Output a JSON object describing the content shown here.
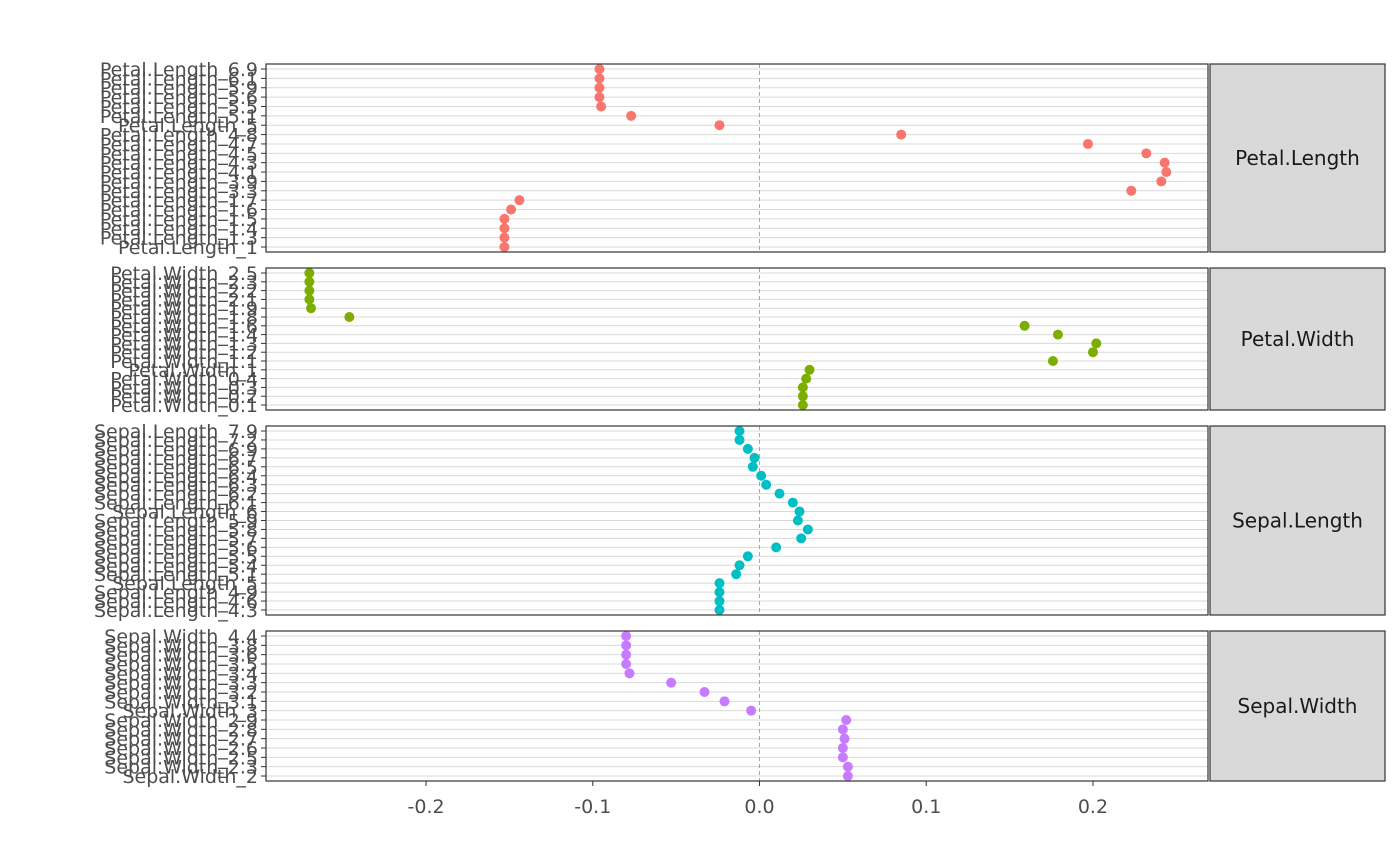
{
  "chart_data": {
    "type": "scatter",
    "title": "",
    "xlabel": "",
    "ylabel": "",
    "xlim": [
      -0.296,
      0.269
    ],
    "x_ticks": [
      -0.2,
      -0.1,
      0.0,
      0.1,
      0.2
    ],
    "x_tick_labels": [
      "-0.2",
      "-0.1",
      "0.0",
      "0.1",
      "0.2"
    ],
    "reference_line_x": 0,
    "grid": true,
    "legend": "none",
    "colors": {
      "Petal.Length": "#F8766D",
      "Petal.Width": "#7CAE00",
      "Sepal.Length": "#00BFC4",
      "Sepal.Width": "#C77CFF",
      "strip_fill": "#d9d9d9",
      "grid": "#d9d9d9",
      "reference_line": "#a6a6a6"
    },
    "panels": [
      {
        "strip": "Petal.Length",
        "categories": [
          "Petal.Length_6.9",
          "Petal.Length_6.1",
          "Petal.Length_5.9",
          "Petal.Length_5.6",
          "Petal.Length_5.5",
          "Petal.Length_5.1",
          "Petal.Length_5",
          "Petal.Length_4.8",
          "Petal.Length_4.7",
          "Petal.Length_4.5",
          "Petal.Length_4.3",
          "Petal.Length_4.1",
          "Petal.Length_3.9",
          "Petal.Length_3.3",
          "Petal.Length_1.7",
          "Petal.Length_1.6",
          "Petal.Length_1.5",
          "Petal.Length_1.4",
          "Petal.Length_1.3",
          "Petal.Length_1"
        ],
        "values": [
          -0.096,
          -0.096,
          -0.096,
          -0.096,
          -0.095,
          -0.077,
          -0.024,
          0.085,
          0.197,
          0.232,
          0.243,
          0.244,
          0.241,
          0.223,
          -0.144,
          -0.149,
          -0.153,
          -0.153,
          -0.153,
          -0.153
        ]
      },
      {
        "strip": "Petal.Width",
        "categories": [
          "Petal.Width_2.5",
          "Petal.Width_2.3",
          "Petal.Width_2.2",
          "Petal.Width_2.1",
          "Petal.Width_1.9",
          "Petal.Width_1.8",
          "Petal.Width_1.6",
          "Petal.Width_1.4",
          "Petal.Width_1.3",
          "Petal.Width_1.2",
          "Petal.Width_1.1",
          "Petal.Width_1",
          "Petal.Width_0.4",
          "Petal.Width_0.3",
          "Petal.Width_0.2",
          "Petal.Width_0.1"
        ],
        "values": [
          -0.27,
          -0.27,
          -0.27,
          -0.27,
          -0.269,
          -0.246,
          0.159,
          0.179,
          0.202,
          0.2,
          0.176,
          0.03,
          0.028,
          0.026,
          0.026,
          0.026
        ]
      },
      {
        "strip": "Sepal.Length",
        "categories": [
          "Sepal.Length_7.9",
          "Sepal.Length_7.2",
          "Sepal.Length_6.9",
          "Sepal.Length_6.7",
          "Sepal.Length_6.5",
          "Sepal.Length_6.4",
          "Sepal.Length_6.3",
          "Sepal.Length_6.2",
          "Sepal.Length_6.1",
          "Sepal.Length_6",
          "Sepal.Length_5.9",
          "Sepal.Length_5.8",
          "Sepal.Length_5.7",
          "Sepal.Length_5.6",
          "Sepal.Length_5.5",
          "Sepal.Length_5.4",
          "Sepal.Length_5.1",
          "Sepal.Length_5",
          "Sepal.Length_4.9",
          "Sepal.Length_4.6",
          "Sepal.Length_4.3"
        ],
        "values": [
          -0.012,
          -0.012,
          -0.007,
          -0.003,
          -0.004,
          0.001,
          0.004,
          0.012,
          0.02,
          0.024,
          0.023,
          0.029,
          0.025,
          0.01,
          -0.007,
          -0.012,
          -0.014,
          -0.024,
          -0.024,
          -0.024,
          -0.024
        ]
      },
      {
        "strip": "Sepal.Width",
        "categories": [
          "Sepal.Width_4.4",
          "Sepal.Width_3.8",
          "Sepal.Width_3.6",
          "Sepal.Width_3.5",
          "Sepal.Width_3.4",
          "Sepal.Width_3.3",
          "Sepal.Width_3.2",
          "Sepal.Width_3.1",
          "Sepal.Width_3",
          "Sepal.Width_2.9",
          "Sepal.Width_2.8",
          "Sepal.Width_2.7",
          "Sepal.Width_2.6",
          "Sepal.Width_2.5",
          "Sepal.Width_2.3",
          "Sepal.Width_2"
        ],
        "values": [
          -0.08,
          -0.08,
          -0.08,
          -0.08,
          -0.078,
          -0.053,
          -0.033,
          -0.021,
          -0.005,
          0.052,
          0.05,
          0.051,
          0.05,
          0.05,
          0.053,
          0.053
        ]
      }
    ]
  }
}
